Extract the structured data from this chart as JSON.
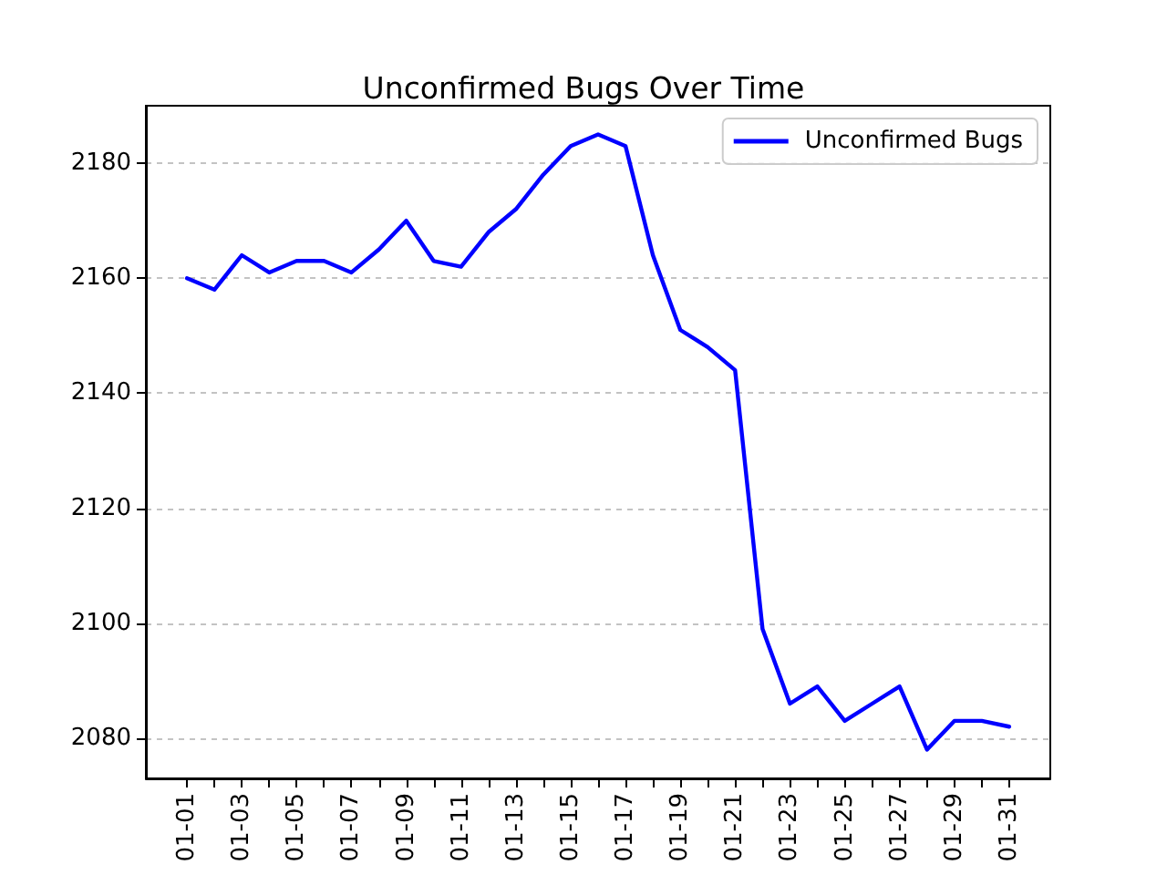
{
  "chart_data": {
    "type": "line",
    "title": "Unconfirmed Bugs Over Time",
    "categories": [
      "01-01",
      null,
      "01-03",
      null,
      "01-05",
      null,
      "01-07",
      null,
      "01-09",
      null,
      "01-11",
      null,
      "01-13",
      null,
      "01-15",
      null,
      "01-17",
      null,
      "01-19",
      null,
      "01-21",
      null,
      "01-23",
      null,
      "01-25",
      null,
      "01-27",
      null,
      "01-29",
      null,
      "01-31"
    ],
    "series": [
      {
        "name": "Unconfirmed Bugs",
        "color": "#0000ff",
        "values": [
          2160,
          2158,
          2164,
          2161,
          2163,
          2163,
          2161,
          2165,
          2170,
          2163,
          2162,
          2168,
          2172,
          2178,
          2183,
          2185,
          2183,
          2164,
          2151,
          2148,
          2144,
          2099,
          2086,
          2089,
          2083,
          2086,
          2089,
          2078,
          2083,
          2083,
          2082
        ]
      }
    ],
    "ylim": [
      2073,
      2190
    ],
    "yticks": [
      2080,
      2100,
      2120,
      2140,
      2160,
      2180
    ],
    "grid": "y",
    "legend": "top right",
    "marker": "none",
    "line_style": "solid"
  }
}
